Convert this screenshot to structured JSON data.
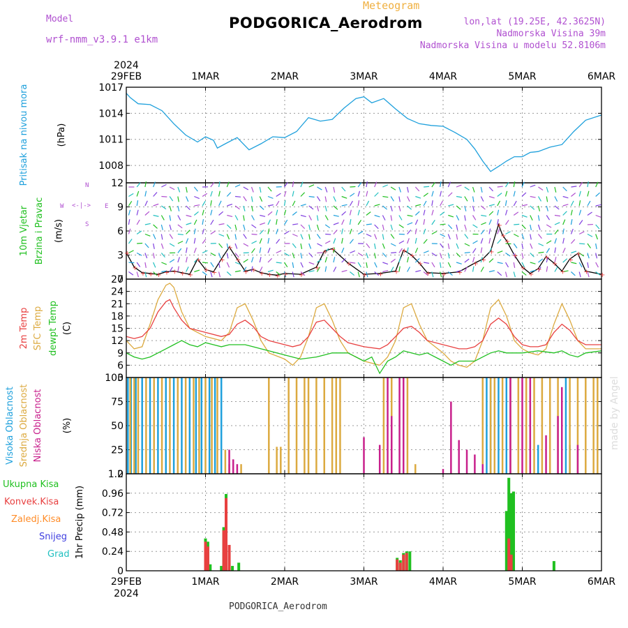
{
  "header": {
    "model_label": "Model",
    "model_name": "wrf-nmm_v3.9.1 e1km",
    "product": "Meteogram",
    "station": "PODGORICA_Aerodrom",
    "lonlat": "lon,lat (19.25E, 42.3625N)",
    "elev": "Nadmorska Visina 39m",
    "elev_model": "Nadmorska Visina u modelu 52.8106m",
    "footer_station": "PODGORICA_Aerodrom",
    "credit": "made by Angel"
  },
  "colors": {
    "pressure": "#1ea0dc",
    "wind_speed": "#000000",
    "temp2m": "#e84040",
    "sfc_temp": "#dcaa40",
    "dewpt": "#20c020",
    "cloud_high": "#1ea0dc",
    "cloud_mid": "#dcaa40",
    "cloud_low": "#c8208c",
    "precip_total": "#20c020",
    "precip_conv": "#e84040",
    "precip_frozen": "#ff8c28",
    "precip_snow": "#4040e0",
    "precip_graupel": "#20c0c0",
    "title": "#000000",
    "purple": "#b050d0",
    "orange": "#f0b040"
  },
  "time_axis": {
    "year": "2024",
    "labels": [
      "29FEB",
      "1MAR",
      "2MAR",
      "3MAR",
      "4MAR",
      "5MAR",
      "6MAR"
    ],
    "days": 6
  },
  "chart_data": [
    {
      "type": "line",
      "ylabels": [
        "Pritisak na nivou mora",
        "(hPa)"
      ],
      "ylim": [
        1006,
        1017
      ],
      "yticks": [
        1008,
        1011,
        1014,
        1017
      ],
      "series": [
        {
          "color_key": "pressure",
          "x": [
            0,
            0.05,
            0.15,
            0.3,
            0.45,
            0.6,
            0.75,
            0.9,
            1.0,
            1.1,
            1.15,
            1.25,
            1.4,
            1.55,
            1.7,
            1.85,
            2.0,
            2.15,
            2.3,
            2.45,
            2.6,
            2.75,
            2.9,
            3.0,
            3.1,
            3.25,
            3.4,
            3.55,
            3.7,
            3.85,
            4.0,
            4.15,
            4.3,
            4.4,
            4.5,
            4.6,
            4.65,
            4.72,
            4.8,
            4.9,
            5.0,
            5.1,
            5.2,
            5.35,
            5.5,
            5.65,
            5.8,
            6.0
          ],
          "values": [
            1016.3,
            1015.8,
            1015.1,
            1015.0,
            1014.3,
            1012.8,
            1011.5,
            1010.7,
            1011.3,
            1010.9,
            1010.0,
            1010.5,
            1011.2,
            1009.8,
            1010.5,
            1011.3,
            1011.2,
            1011.9,
            1013.5,
            1013.1,
            1013.3,
            1014.6,
            1015.7,
            1015.9,
            1015.2,
            1015.7,
            1014.5,
            1013.4,
            1012.8,
            1012.6,
            1012.5,
            1011.8,
            1011.0,
            1009.9,
            1008.5,
            1007.3,
            1007.6,
            1008.0,
            1008.5,
            1009.0,
            1009.0,
            1009.5,
            1009.6,
            1010.1,
            1010.4,
            1011.9,
            1013.2,
            1013.8
          ]
        }
      ]
    },
    {
      "type": "line",
      "ylabels": [
        "10m Vjetar",
        "Brzina i Pravac",
        "(m/s)"
      ],
      "ylim": [
        0,
        12
      ],
      "yticks": [
        0,
        3,
        6,
        9,
        12
      ],
      "direction_legend": {
        "n": "N",
        "s": "S",
        "w": "W",
        "e": "E",
        "arrow": "<-|->"
      },
      "series": [
        {
          "color_key": "wind_speed",
          "x": [
            0,
            0.1,
            0.2,
            0.3,
            0.4,
            0.5,
            0.6,
            0.7,
            0.8,
            0.9,
            1.0,
            1.1,
            1.2,
            1.3,
            1.4,
            1.5,
            1.6,
            1.7,
            1.8,
            1.9,
            2.0,
            2.2,
            2.4,
            2.5,
            2.6,
            2.8,
            3.0,
            3.2,
            3.4,
            3.5,
            3.6,
            3.7,
            3.8,
            4.0,
            4.2,
            4.4,
            4.5,
            4.6,
            4.7,
            4.75,
            4.8,
            4.9,
            5.0,
            5.1,
            5.2,
            5.3,
            5.4,
            5.5,
            5.6,
            5.7,
            5.8,
            6.0
          ],
          "values": [
            3.3,
            1.5,
            0.8,
            0.7,
            0.6,
            0.9,
            1.0,
            0.8,
            0.6,
            2.5,
            1.2,
            0.9,
            2.5,
            4.0,
            2.5,
            1.0,
            1.2,
            0.8,
            0.6,
            0.5,
            0.7,
            0.6,
            1.5,
            3.5,
            3.8,
            2.0,
            0.6,
            0.7,
            1.0,
            3.6,
            3.0,
            2.0,
            0.8,
            0.7,
            0.9,
            2.0,
            2.5,
            3.5,
            6.8,
            5.5,
            4.8,
            3.0,
            1.5,
            0.7,
            1.3,
            2.8,
            2.0,
            1.0,
            2.5,
            3.2,
            1.0,
            0.6
          ]
        }
      ]
    },
    {
      "type": "line",
      "ylabels": [
        "2m Temp",
        "SFC Temp",
        "dewpt Temp",
        "(C)"
      ],
      "ylim": [
        3,
        27
      ],
      "yticks": [
        3,
        6,
        9,
        12,
        15,
        18,
        21,
        24,
        27
      ],
      "series": [
        {
          "color_key": "sfc_temp",
          "x": [
            0,
            0.1,
            0.2,
            0.3,
            0.4,
            0.5,
            0.55,
            0.6,
            0.7,
            0.8,
            0.9,
            1.0,
            1.2,
            1.3,
            1.4,
            1.5,
            1.6,
            1.7,
            1.8,
            2.0,
            2.1,
            2.2,
            2.3,
            2.4,
            2.5,
            2.6,
            2.7,
            2.8,
            3.0,
            3.2,
            3.3,
            3.4,
            3.5,
            3.6,
            3.7,
            3.8,
            4.0,
            4.1,
            4.2,
            4.3,
            4.4,
            4.5,
            4.6,
            4.7,
            4.8,
            4.9,
            5.0,
            5.1,
            5.2,
            5.3,
            5.4,
            5.5,
            5.6,
            5.7,
            5.8,
            6.0
          ],
          "values": [
            12,
            10,
            10.5,
            16,
            22,
            25.5,
            26,
            25,
            19,
            15,
            14,
            13,
            12,
            14,
            20,
            21,
            17,
            12,
            9,
            7.5,
            6,
            8,
            13,
            20,
            21,
            17,
            12,
            9,
            7,
            6,
            8,
            12,
            20,
            21,
            16,
            12,
            9,
            7,
            6,
            5.5,
            7,
            12,
            20,
            22,
            18,
            12,
            10,
            9,
            8.5,
            10,
            16,
            21,
            17,
            12,
            10,
            10
          ]
        },
        {
          "color_key": "temp2m",
          "x": [
            0,
            0.1,
            0.2,
            0.3,
            0.4,
            0.5,
            0.55,
            0.6,
            0.7,
            0.8,
            0.9,
            1.0,
            1.2,
            1.3,
            1.4,
            1.5,
            1.6,
            1.7,
            1.8,
            2.0,
            2.1,
            2.2,
            2.3,
            2.4,
            2.5,
            2.6,
            2.7,
            2.8,
            3.0,
            3.2,
            3.3,
            3.4,
            3.5,
            3.6,
            3.7,
            3.8,
            4.0,
            4.1,
            4.2,
            4.3,
            4.4,
            4.5,
            4.6,
            4.7,
            4.8,
            4.9,
            5.0,
            5.1,
            5.2,
            5.3,
            5.4,
            5.5,
            5.6,
            5.7,
            5.8,
            6.0
          ],
          "values": [
            13,
            12.5,
            13,
            15,
            19,
            21.5,
            22,
            20,
            17,
            15,
            14.5,
            14,
            13,
            13.5,
            16,
            17,
            15.5,
            13,
            12,
            11,
            10.5,
            11,
            13,
            16.5,
            17,
            15,
            13,
            11.5,
            10.5,
            10,
            11,
            13,
            15,
            15.5,
            14,
            12,
            11,
            10.5,
            10,
            10,
            10.5,
            12,
            16,
            17.5,
            16,
            13,
            11,
            10.5,
            10.5,
            11,
            14,
            16,
            14.5,
            12,
            11,
            11
          ]
        },
        {
          "color_key": "dewpt",
          "x": [
            0,
            0.1,
            0.2,
            0.3,
            0.4,
            0.5,
            0.6,
            0.7,
            0.8,
            0.9,
            1.0,
            1.1,
            1.2,
            1.3,
            1.4,
            1.5,
            1.6,
            1.7,
            1.8,
            1.9,
            2.0,
            2.2,
            2.4,
            2.5,
            2.6,
            2.8,
            3.0,
            3.1,
            3.2,
            3.3,
            3.4,
            3.5,
            3.6,
            3.7,
            3.8,
            4.0,
            4.1,
            4.2,
            4.4,
            4.5,
            4.6,
            4.7,
            4.8,
            4.9,
            5.0,
            5.2,
            5.4,
            5.5,
            5.6,
            5.7,
            5.8,
            6.0
          ],
          "values": [
            9,
            8,
            7.5,
            8,
            9,
            10,
            11,
            12,
            11,
            10.5,
            11.5,
            11,
            10.5,
            11,
            11,
            11,
            10.5,
            10,
            9.5,
            9,
            8.5,
            7.5,
            8,
            8.5,
            9,
            9,
            7,
            8,
            4,
            7,
            8,
            9.5,
            9,
            8.5,
            9,
            7,
            6,
            7,
            7,
            8,
            9,
            9.5,
            9,
            9,
            9,
            9.5,
            9,
            9.5,
            8.5,
            8,
            9,
            9.5
          ]
        }
      ]
    },
    {
      "type": "bar",
      "ylabels": [
        "Visoka Oblacnost",
        "Srednja Oblacnost",
        "Niska Oblacnost",
        "(%)"
      ],
      "ylim": [
        0,
        100
      ],
      "yticks": [
        0,
        25,
        50,
        75,
        100
      ],
      "series": [
        {
          "color_key": "cloud_high",
          "x": [
            0.02,
            0.06,
            0.12,
            0.2,
            0.3,
            0.4,
            0.5,
            0.6,
            0.7,
            0.8,
            0.88,
            0.95,
            1.05,
            1.12,
            1.2,
            4.55,
            4.6,
            4.7,
            4.8,
            5.2,
            5.55,
            5.6
          ],
          "values": [
            100,
            100,
            100,
            100,
            100,
            100,
            100,
            100,
            100,
            100,
            100,
            100,
            100,
            100,
            100,
            100,
            100,
            100,
            100,
            30,
            100,
            30
          ]
        },
        {
          "color_key": "cloud_mid",
          "x": [
            0.05,
            0.1,
            0.15,
            0.25,
            0.35,
            0.45,
            0.55,
            0.65,
            0.75,
            0.85,
            0.92,
            1.0,
            1.08,
            1.15,
            1.25,
            1.3,
            1.45,
            1.8,
            1.9,
            1.95,
            2.05,
            2.15,
            2.25,
            2.3,
            2.4,
            2.5,
            2.6,
            2.65,
            2.7,
            3.25,
            3.35,
            3.55,
            3.65,
            4.5,
            4.6,
            4.65,
            4.75,
            4.85,
            4.95,
            5.05,
            5.15,
            5.25,
            5.35,
            5.45,
            5.6,
            5.7,
            5.8,
            5.9,
            5.95
          ],
          "values": [
            100,
            100,
            100,
            100,
            100,
            100,
            100,
            100,
            100,
            100,
            100,
            100,
            100,
            100,
            25,
            10,
            10,
            100,
            28,
            28,
            100,
            100,
            100,
            100,
            100,
            100,
            100,
            100,
            100,
            100,
            100,
            100,
            10,
            100,
            100,
            100,
            100,
            100,
            100,
            100,
            100,
            100,
            100,
            100,
            100,
            100,
            100,
            100,
            100
          ]
        },
        {
          "color_key": "cloud_low",
          "x": [
            1.3,
            1.35,
            1.4,
            3.0,
            3.2,
            3.3,
            3.35,
            3.45,
            3.5,
            4.0,
            4.1,
            4.2,
            4.3,
            4.4,
            4.5,
            4.85,
            5.0,
            5.1,
            5.3,
            5.45,
            5.5,
            5.7
          ],
          "values": [
            25,
            15,
            10,
            38,
            30,
            100,
            60,
            100,
            100,
            5,
            75,
            35,
            25,
            20,
            10,
            100,
            100,
            100,
            40,
            60,
            90,
            30
          ]
        }
      ]
    },
    {
      "type": "bar",
      "ylabels": [
        "1hr Precip (mm)"
      ],
      "legend": [
        "Ukupna Kisa",
        "Konvek.Kisa",
        "Zaledj.Kisa",
        "Snijeg",
        "Grad"
      ],
      "ylim": [
        0,
        1.2
      ],
      "yticks": [
        0,
        0.24,
        0.48,
        0.72,
        0.96,
        1.2
      ],
      "series": [
        {
          "color_key": "precip_total",
          "x": [
            1.0,
            1.03,
            1.06,
            1.2,
            1.23,
            1.26,
            1.3,
            1.34,
            1.42,
            3.42,
            3.46,
            3.5,
            3.54,
            3.58,
            4.8,
            4.83,
            4.86,
            4.89,
            5.4
          ],
          "values": [
            0.4,
            0.36,
            0.08,
            0.06,
            0.54,
            0.95,
            0.04,
            0.06,
            0.1,
            0.16,
            0.13,
            0.22,
            0.24,
            0.24,
            0.74,
            1.15,
            0.96,
            0.98,
            0.12
          ]
        },
        {
          "color_key": "precip_conv",
          "x": [
            1.0,
            1.03,
            1.23,
            1.26,
            1.3,
            3.42,
            3.46,
            3.5,
            3.54,
            4.83,
            4.86
          ],
          "values": [
            0.36,
            0.3,
            0.5,
            0.9,
            0.32,
            0.14,
            0.1,
            0.2,
            0.22,
            0.4,
            0.2
          ]
        }
      ]
    }
  ]
}
